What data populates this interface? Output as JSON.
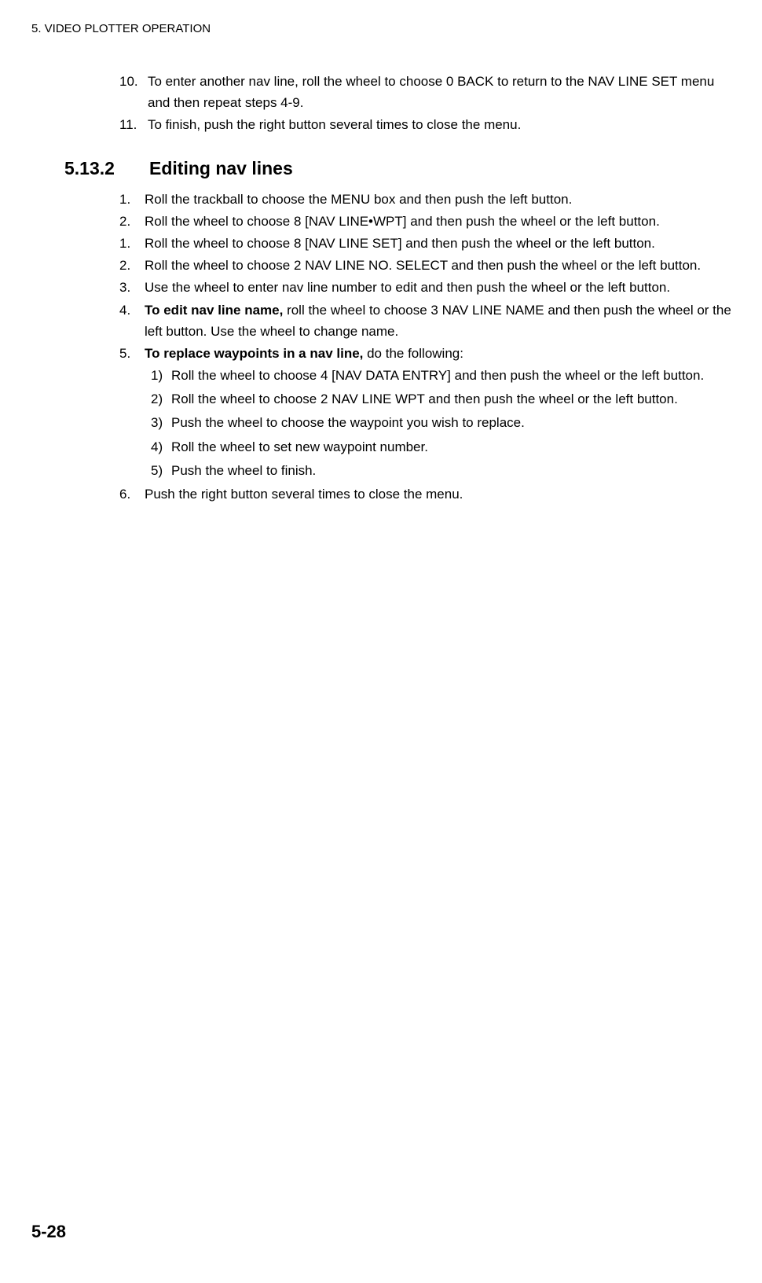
{
  "header": "5. VIDEO PLOTTER OPERATION",
  "intro_items": [
    {
      "num": "10.",
      "text": "To enter another nav line, roll the wheel to choose 0 BACK to return to the NAV LINE SET menu and then repeat steps 4-9."
    },
    {
      "num": "11.",
      "text": "To finish, push the right button several times to close the menu."
    }
  ],
  "section": {
    "num": "5.13.2",
    "title": "Editing nav lines"
  },
  "main_items": [
    {
      "num": "1.",
      "text": "Roll the trackball to choose the MENU box and then push the left button."
    },
    {
      "num": "2.",
      "text": "Roll the wheel to choose 8 [NAV LINE•WPT] and then push the wheel or the left button."
    },
    {
      "num": "1.",
      "text": "Roll the wheel to choose 8 [NAV LINE SET] and then push the wheel or the left button."
    },
    {
      "num": "2.",
      "text": "Roll the wheel to choose 2 NAV LINE NO. SELECT and then push the wheel or the left button."
    },
    {
      "num": "3.",
      "text": "Use the wheel to enter nav line number to edit and then push the wheel or the left button."
    }
  ],
  "item4": {
    "num": "4.",
    "bold": "To edit nav line name,",
    "text": " roll the wheel to choose 3 NAV LINE NAME and then push the wheel or the left button. Use the wheel to change name."
  },
  "item5": {
    "num": "5.",
    "bold": "To replace waypoints in a nav line,",
    "text": " do the following:"
  },
  "sub_items": [
    {
      "num": "1)",
      "text": "Roll the wheel to choose 4 [NAV DATA ENTRY] and then push the wheel or the left button."
    },
    {
      "num": "2)",
      "text": "Roll the wheel to choose 2 NAV LINE WPT and then push the wheel or the left button."
    },
    {
      "num": "3)",
      "text": "Push the wheel to choose the waypoint you wish to replace."
    },
    {
      "num": "4)",
      "text": "Roll the wheel to set new waypoint number."
    },
    {
      "num": "5)",
      "text": "Push the wheel to finish."
    }
  ],
  "item6": {
    "num": "6.",
    "text": "Push the right button several times to close the menu."
  },
  "page_number": "5-28"
}
